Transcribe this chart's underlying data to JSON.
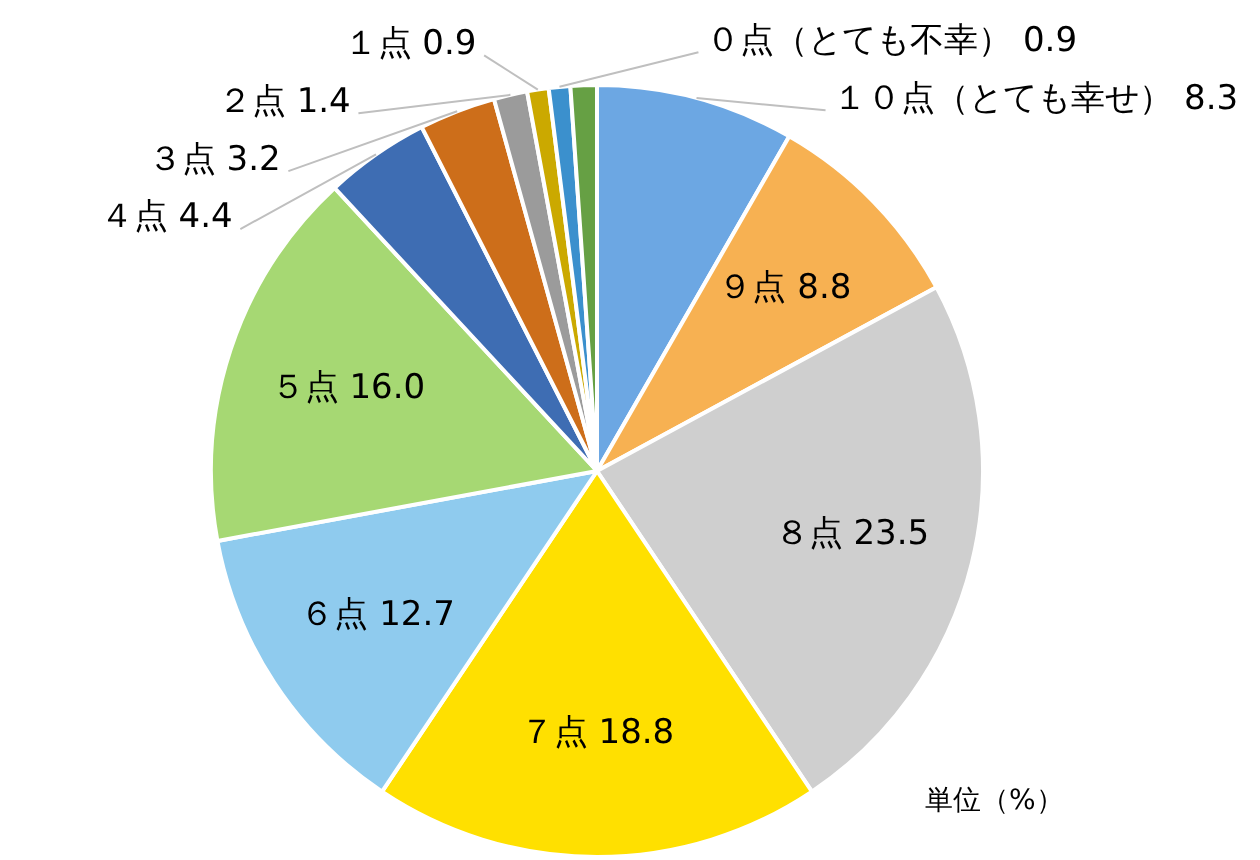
{
  "chart_data": {
    "type": "pie",
    "categories": [
      "１０点（とても幸せ）",
      "９点",
      "８点",
      "７点",
      "６点",
      "５点",
      "４点",
      "３点",
      "２点",
      "１点",
      "０点（とても不幸）",
      null
    ],
    "values": [
      8.3,
      8.8,
      23.5,
      18.8,
      12.7,
      16.0,
      4.4,
      3.2,
      1.4,
      0.9,
      0.9,
      1.1
    ],
    "value_labels": [
      "8.3",
      "8.8",
      "23.5",
      "18.8",
      "12.7",
      "16.0",
      "4.4",
      "3.2",
      "1.4",
      "0.9",
      "0.9",
      null
    ],
    "colors": [
      "#6ca7e3",
      "#f7b152",
      "#cfcfcf",
      "#ffe000",
      "#8fcbee",
      "#a6d873",
      "#3e6db3",
      "#cd6e1a",
      "#9b9b9b",
      "#cba900",
      "#3b90cd",
      "#66a044"
    ],
    "annotations": [
      "単位（%）"
    ]
  }
}
